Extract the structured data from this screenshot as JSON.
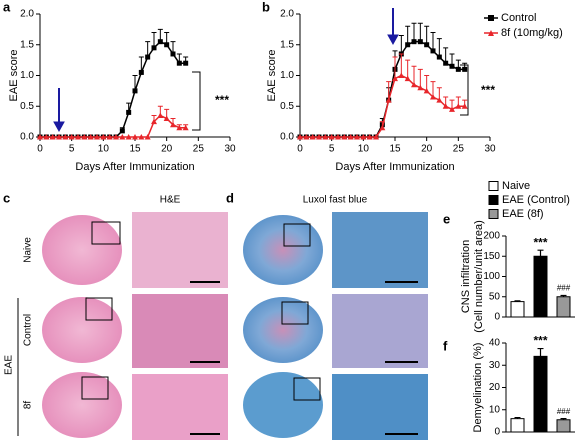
{
  "chart_data": [
    {
      "type": "line",
      "panel_label": "a",
      "xlabel": "Days After Immunization",
      "ylabel": "EAE score",
      "annotation": "***",
      "x": [
        0,
        1,
        2,
        3,
        4,
        5,
        6,
        7,
        8,
        9,
        10,
        11,
        12,
        13,
        14,
        15,
        16,
        17,
        18,
        19,
        20,
        21,
        22,
        23
      ],
      "xlim": [
        0,
        30
      ],
      "xticks": [
        0,
        5,
        10,
        15,
        20,
        25,
        30
      ],
      "ylim": [
        0,
        2
      ],
      "yticks": [
        {
          "value": 0,
          "label": "0.0"
        },
        {
          "value": 0.5,
          "label": "0.5"
        },
        {
          "value": 1,
          "label": "1.0"
        },
        {
          "value": 1.5,
          "label": "1.5"
        },
        {
          "value": 2,
          "label": "2.0"
        }
      ],
      "series": [
        {
          "color": "#000000",
          "marker": "square",
          "values": [
            0,
            0,
            0,
            0,
            0,
            0,
            0,
            0,
            0,
            0,
            0,
            0,
            0,
            0.1,
            0.4,
            0.75,
            1.05,
            1.3,
            1.45,
            1.55,
            1.5,
            1.35,
            1.2,
            1.2
          ],
          "errors": [
            0,
            0,
            0,
            0,
            0,
            0,
            0,
            0,
            0,
            0,
            0,
            0,
            0,
            0.05,
            0.15,
            0.25,
            0.25,
            0.25,
            0.25,
            0.2,
            0.2,
            0.2,
            0.15,
            0.1
          ]
        },
        {
          "color": "#e8262b",
          "marker": "triangle",
          "values": [
            0,
            0,
            0,
            0,
            0,
            0,
            0,
            0,
            0,
            0,
            0,
            0,
            0,
            0,
            0,
            0,
            0,
            0,
            0.25,
            0.35,
            0.3,
            0.2,
            0.15,
            0.15
          ],
          "errors": [
            0,
            0,
            0,
            0,
            0,
            0,
            0,
            0,
            0,
            0,
            0,
            0,
            0,
            0,
            0,
            0,
            0,
            0,
            0.1,
            0.15,
            0.15,
            0.1,
            0.05,
            0.05
          ]
        }
      ]
    },
    {
      "type": "line",
      "panel_label": "b",
      "xlabel": "Days After Immunization",
      "ylabel": "EAE score",
      "annotation": "***",
      "legend": "upper right",
      "x": [
        0,
        1,
        2,
        3,
        4,
        5,
        6,
        7,
        8,
        9,
        10,
        11,
        12,
        13,
        14,
        15,
        16,
        17,
        18,
        19,
        20,
        21,
        22,
        23,
        24,
        25,
        26
      ],
      "xlim": [
        0,
        30
      ],
      "xticks": [
        0,
        5,
        10,
        15,
        20,
        25,
        30
      ],
      "ylim": [
        0,
        2
      ],
      "yticks": [
        {
          "value": 0,
          "label": "0.0"
        },
        {
          "value": 0.5,
          "label": "0.5"
        },
        {
          "value": 1,
          "label": "1.0"
        },
        {
          "value": 1.5,
          "label": "1.5"
        },
        {
          "value": 2,
          "label": "2.0"
        }
      ],
      "series": [
        {
          "name": "Control",
          "color": "#000000",
          "marker": "square",
          "values": [
            0,
            0,
            0,
            0,
            0,
            0,
            0,
            0,
            0,
            0,
            0,
            0,
            0,
            0.2,
            0.6,
            1.1,
            1.35,
            1.5,
            1.55,
            1.55,
            1.5,
            1.4,
            1.3,
            1.2,
            1.15,
            1.1,
            1.1
          ],
          "errors": [
            0,
            0,
            0,
            0,
            0,
            0,
            0,
            0,
            0,
            0,
            0,
            0,
            0,
            0.1,
            0.2,
            0.3,
            0.3,
            0.3,
            0.3,
            0.3,
            0.3,
            0.3,
            0.3,
            0.25,
            0.2,
            0.15,
            0.1
          ]
        },
        {
          "name": "8f (10mg/kg)",
          "color": "#e8262b",
          "marker": "triangle",
          "values": [
            0,
            0,
            0,
            0,
            0,
            0,
            0,
            0,
            0,
            0,
            0,
            0,
            0,
            0.15,
            0.6,
            0.95,
            1.0,
            0.95,
            0.85,
            0.8,
            0.75,
            0.65,
            0.6,
            0.5,
            0.45,
            0.5,
            0.5
          ],
          "errors": [
            0,
            0,
            0,
            0,
            0,
            0,
            0,
            0,
            0,
            0,
            0,
            0,
            0,
            0.1,
            0.3,
            0.35,
            0.35,
            0.3,
            0.3,
            0.3,
            0.25,
            0.25,
            0.2,
            0.15,
            0.15,
            0.15,
            0.1
          ]
        }
      ]
    },
    {
      "type": "bar",
      "panel_label": "e",
      "ylabel": [
        "CNS infiltration",
        "(Cell number/unit area)"
      ],
      "legend": "upper left",
      "categories": [
        "Naive",
        "EAE (Control)",
        "EAE (8f)"
      ],
      "colors": [
        "#ffffff",
        "#000000",
        "#999999"
      ],
      "values": [
        38,
        150,
        50
      ],
      "errors": [
        2,
        15,
        3
      ],
      "value_annotations": [
        null,
        "***",
        "###"
      ],
      "ylim": [
        0,
        200
      ],
      "yticks": [
        0,
        50,
        100,
        150,
        200
      ]
    },
    {
      "type": "bar",
      "panel_label": "f",
      "ylabel": [
        "Demyelination (%)"
      ],
      "colors": [
        "#ffffff",
        "#000000",
        "#999999"
      ],
      "values": [
        6,
        34,
        5.5
      ],
      "errors": [
        0.5,
        3.5,
        0.5
      ],
      "value_annotations": [
        null,
        "***",
        "###"
      ],
      "ylim": [
        0,
        40
      ],
      "yticks": [
        0,
        10,
        20,
        30,
        40
      ]
    }
  ],
  "panels": {
    "c": {
      "label": "c",
      "title": "H&E"
    },
    "d": {
      "label": "d",
      "title": "Luxol fast blue"
    },
    "rows": [
      "Naive",
      "Control",
      "8f"
    ],
    "group": "EAE"
  }
}
